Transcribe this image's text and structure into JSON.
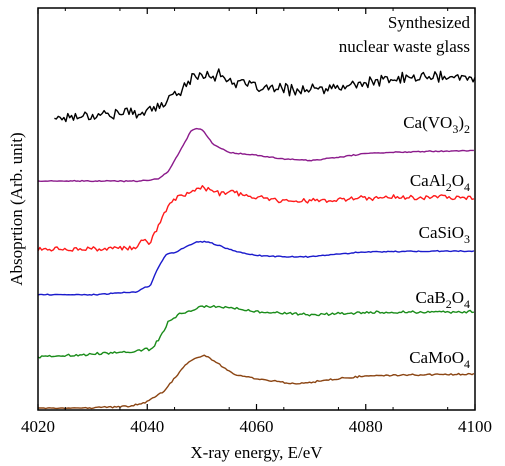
{
  "chart_data": {
    "type": "line",
    "xlabel": "X-ray energy, E/eV",
    "ylabel": "Absoprtion (Arb. unit)",
    "xlim": [
      4020,
      4100
    ],
    "xticks": [
      "4020",
      "4040",
      "4060",
      "4080",
      "4100"
    ],
    "yticks_labeled": false,
    "grid": false,
    "legend": "none (labels placed beside each curve)",
    "y_units": "arbitrary, vertically offset stack (0 = bottom of frame, 100 = top of frame)",
    "series": [
      {
        "name": "Synthesized nuclear waste glass",
        "label_lines": [
          "Synthesized",
          "nuclear waste glass"
        ],
        "color": "#000000",
        "noise": 2.2,
        "x": [
          4023,
          4030,
          4038,
          4042,
          4045,
          4048,
          4050,
          4053,
          4056,
          4060,
          4065,
          4070,
          4075,
          4080,
          4085,
          4090,
          4095,
          4100
        ],
        "y": [
          73.3,
          74.1,
          74.6,
          75.7,
          79.2,
          82.9,
          84.4,
          84.1,
          82.4,
          80.8,
          80.5,
          80.3,
          80.8,
          82.1,
          82.9,
          83.7,
          83.4,
          83.4
        ]
      },
      {
        "name": "Ca(VO3)2",
        "label_parts": [
          [
            "Ca(VO",
            false
          ],
          [
            "3",
            true
          ],
          [
            ")",
            false
          ],
          [
            "2",
            true
          ]
        ],
        "color": "#8b1a8b",
        "noise": 0.2,
        "x": [
          4020,
          4030,
          4038,
          4042,
          4044,
          4046,
          4048,
          4049,
          4050,
          4052,
          4055,
          4060,
          4065,
          4070,
          4075,
          4080,
          4090,
          4100
        ],
        "y": [
          57.3,
          57.3,
          57.3,
          57.8,
          60.0,
          65.0,
          69.9,
          70.6,
          70.4,
          66.7,
          64.5,
          63.8,
          62.9,
          62.5,
          63.3,
          64.3,
          64.8,
          65.0
        ]
      },
      {
        "name": "CaAl2O4",
        "label_parts": [
          [
            "CaAl",
            false
          ],
          [
            "2",
            true
          ],
          [
            "O",
            false
          ],
          [
            "4",
            true
          ]
        ],
        "color": "#ff1a1a",
        "noise": 1.0,
        "x": [
          4020,
          4030,
          4038,
          4039.5,
          4040.5,
          4042,
          4044,
          4046,
          4048,
          4050,
          4053,
          4056,
          4060,
          4065,
          4070,
          4075,
          4080,
          4090,
          4100
        ],
        "y": [
          40.1,
          40.1,
          40.4,
          43.0,
          41.0,
          46.0,
          51.8,
          53.6,
          54.6,
          55.7,
          54.3,
          54.3,
          53.0,
          52.5,
          52.4,
          52.5,
          53.0,
          53.3,
          53.3
        ]
      },
      {
        "name": "CaSiO3",
        "label_parts": [
          [
            "CaSiO",
            false
          ],
          [
            "3",
            true
          ]
        ],
        "color": "#1a1acc",
        "noise": 0.2,
        "x": [
          4020,
          4030,
          4038,
          4039.5,
          4040.5,
          4042,
          4043.5,
          4045,
          4047,
          4049,
          4051,
          4053,
          4056,
          4060,
          4065,
          4070,
          4075,
          4080,
          4090,
          4100
        ],
        "y": [
          28.6,
          28.6,
          29.3,
          30.4,
          30.8,
          35.4,
          38.9,
          39.2,
          40.7,
          41.9,
          42.0,
          41.1,
          39.6,
          38.5,
          38.2,
          38.2,
          38.9,
          39.4,
          39.6,
          39.6
        ]
      },
      {
        "name": "CaB2O4",
        "label_parts": [
          [
            "CaB",
            false
          ],
          [
            "2",
            true
          ],
          [
            "O",
            false
          ],
          [
            "4",
            true
          ]
        ],
        "color": "#1a8c1a",
        "noise": 0.5,
        "x": [
          4020,
          4030,
          4038,
          4039.5,
          4040.5,
          4042,
          4044,
          4046,
          4048,
          4050,
          4052,
          4055,
          4060,
          4065,
          4070,
          4075,
          4080,
          4090,
          4100
        ],
        "y": [
          12.9,
          13.6,
          14.4,
          15.0,
          14.6,
          17.1,
          22.0,
          23.8,
          24.7,
          25.6,
          25.6,
          25.3,
          24.4,
          23.9,
          23.6,
          23.9,
          24.1,
          24.2,
          24.3
        ]
      },
      {
        "name": "CaMoO4",
        "label_parts": [
          [
            "CaMoO",
            false
          ],
          [
            "4",
            true
          ]
        ],
        "color": "#8b4513",
        "noise": 0.3,
        "x": [
          4020,
          4030,
          4037,
          4039.5,
          4041,
          4043,
          4045,
          4047,
          4049,
          4050.5,
          4053,
          4056,
          4058,
          4060,
          4063,
          4067,
          4070,
          4075,
          4080,
          4090,
          4100
        ],
        "y": [
          0.0,
          0.0,
          0.5,
          1.2,
          2.5,
          4.2,
          7.5,
          11.0,
          12.7,
          13.3,
          11.2,
          8.4,
          7.9,
          7.4,
          6.8,
          6.1,
          6.5,
          7.4,
          8.1,
          8.4,
          8.5
        ]
      }
    ]
  }
}
